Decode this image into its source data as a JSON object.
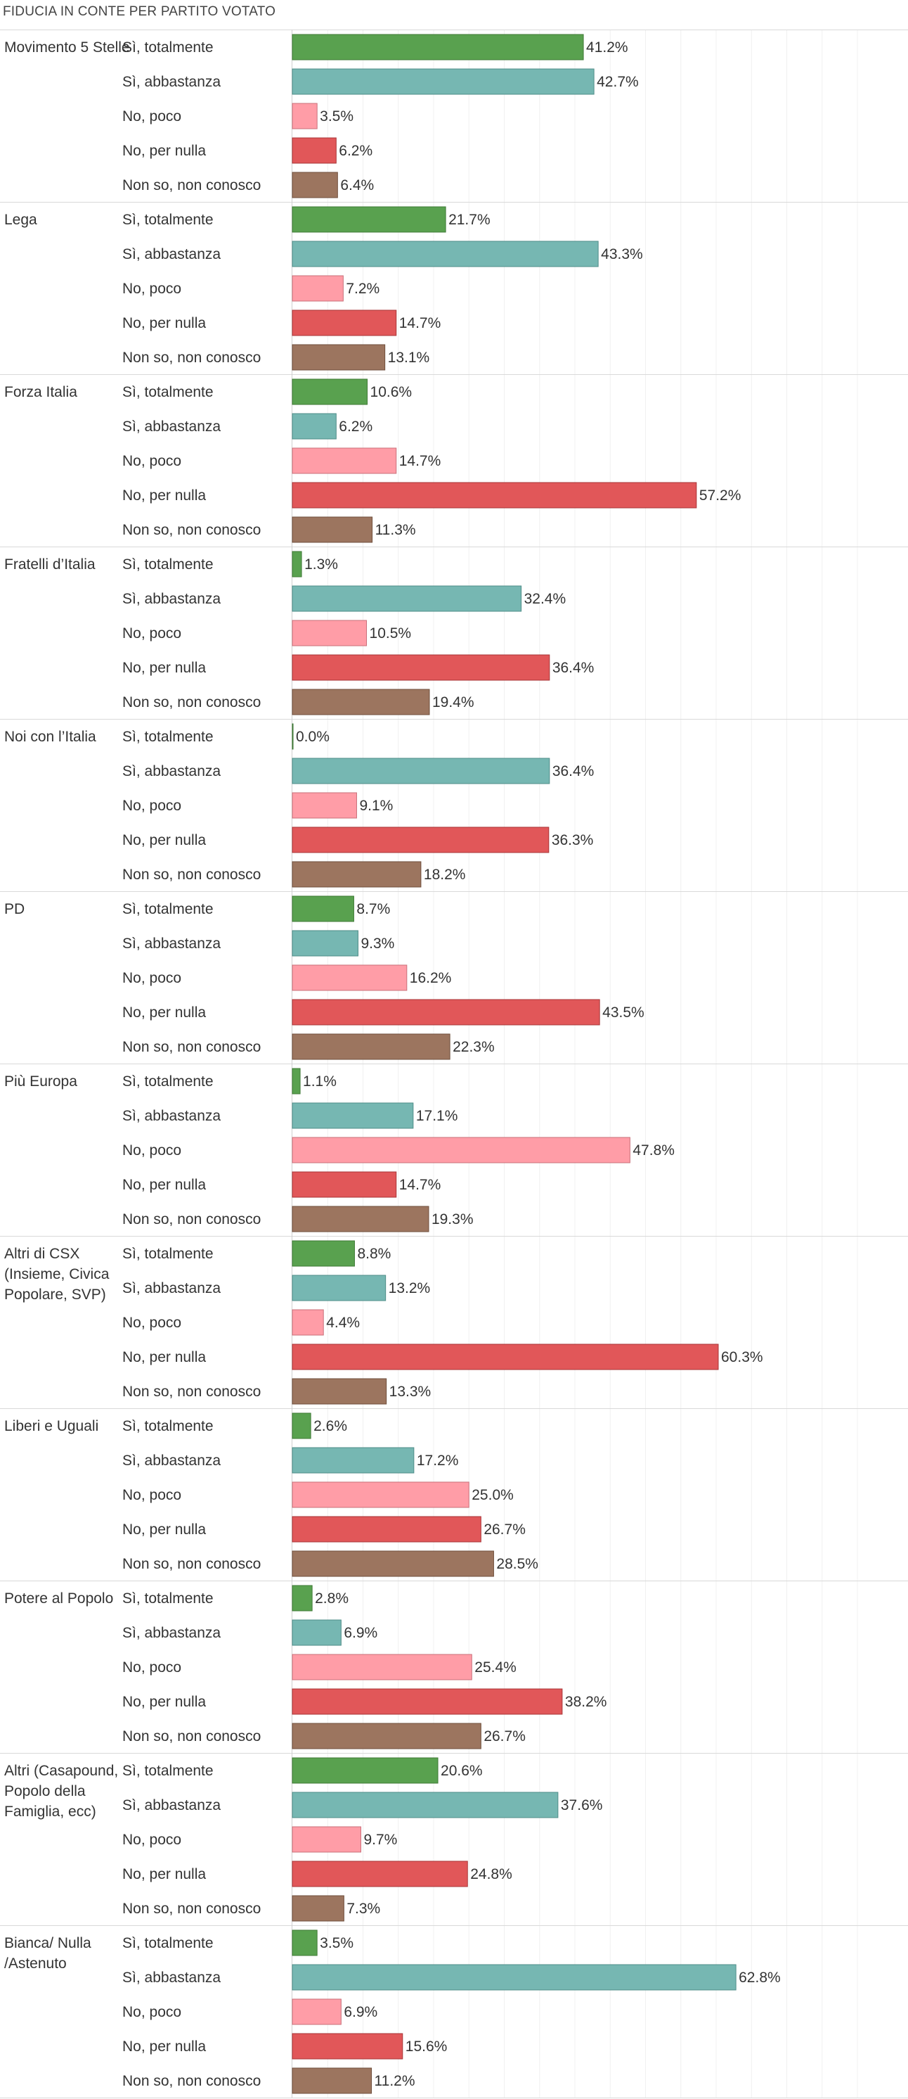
{
  "title": "FIDUCIA IN CONTE PER PARTITO VOTATO",
  "chart_data": {
    "type": "bar",
    "orientation": "horizontal",
    "title": "FIDUCIA IN CONTE PER PARTITO VOTATO",
    "unit": "%",
    "xlim": [
      0,
      70
    ],
    "grid": true,
    "legend": "none",
    "answers": [
      "Sì, totalmente",
      "Sì, abbastanza",
      "No, poco",
      "No, per nulla",
      "Non so, non conosco"
    ],
    "colors": [
      "#59a14f",
      "#76b7b2",
      "#ff9da7",
      "#e15759",
      "#9c755f"
    ],
    "groups": [
      {
        "party": "Movimento 5 Stelle",
        "values": [
          41.2,
          42.7,
          3.5,
          6.2,
          6.4
        ],
        "labels": [
          "41.2%",
          "42.7%",
          "3.5%",
          "6.2%",
          "6.4%"
        ]
      },
      {
        "party": "Lega",
        "values": [
          21.7,
          43.3,
          7.2,
          14.7,
          13.1
        ],
        "labels": [
          "21.7%",
          "43.3%",
          "7.2%",
          "14.7%",
          "13.1%"
        ]
      },
      {
        "party": "Forza Italia",
        "values": [
          10.6,
          6.2,
          14.7,
          57.2,
          11.3
        ],
        "labels": [
          "10.6%",
          "6.2%",
          "14.7%",
          "57.2%",
          "11.3%"
        ]
      },
      {
        "party": "Fratelli d’Italia",
        "values": [
          1.3,
          32.4,
          10.5,
          36.4,
          19.4
        ],
        "labels": [
          "1.3%",
          "32.4%",
          "10.5%",
          "36.4%",
          "19.4%"
        ]
      },
      {
        "party": "Noi con l’Italia",
        "values": [
          0.0,
          36.4,
          9.1,
          36.3,
          18.2
        ],
        "labels": [
          "0.0%",
          "36.4%",
          "9.1%",
          "36.3%",
          "18.2%"
        ]
      },
      {
        "party": "PD",
        "values": [
          8.7,
          9.3,
          16.2,
          43.5,
          22.3
        ],
        "labels": [
          "8.7%",
          "9.3%",
          "16.2%",
          "43.5%",
          "22.3%"
        ]
      },
      {
        "party": "Più Europa",
        "values": [
          1.1,
          17.1,
          47.8,
          14.7,
          19.3
        ],
        "labels": [
          "1.1%",
          "17.1%",
          "47.8%",
          "14.7%",
          "19.3%"
        ]
      },
      {
        "party": "Altri di CSX (Insieme, Civica Popolare, SVP)",
        "values": [
          8.8,
          13.2,
          4.4,
          60.3,
          13.3
        ],
        "labels": [
          "8.8%",
          "13.2%",
          "4.4%",
          "60.3%",
          "13.3%"
        ]
      },
      {
        "party": "Liberi e Uguali",
        "values": [
          2.6,
          17.2,
          25.0,
          26.7,
          28.5
        ],
        "labels": [
          "2.6%",
          "17.2%",
          "25.0%",
          "26.7%",
          "28.5%"
        ]
      },
      {
        "party": "Potere al Popolo",
        "values": [
          2.8,
          6.9,
          25.4,
          38.2,
          26.7
        ],
        "labels": [
          "2.8%",
          "6.9%",
          "25.4%",
          "38.2%",
          "26.7%"
        ]
      },
      {
        "party": "Altri (Casapound, Popolo della Famiglia, ecc)",
        "values": [
          20.6,
          37.6,
          9.7,
          24.8,
          7.3
        ],
        "labels": [
          "20.6%",
          "37.6%",
          "9.7%",
          "24.8%",
          "7.3%"
        ]
      },
      {
        "party": "Bianca/ Nulla /Astenuto",
        "values": [
          3.5,
          62.8,
          6.9,
          15.6,
          11.2
        ],
        "labels": [
          "3.5%",
          "62.8%",
          "6.9%",
          "15.6%",
          "11.2%"
        ]
      }
    ]
  }
}
